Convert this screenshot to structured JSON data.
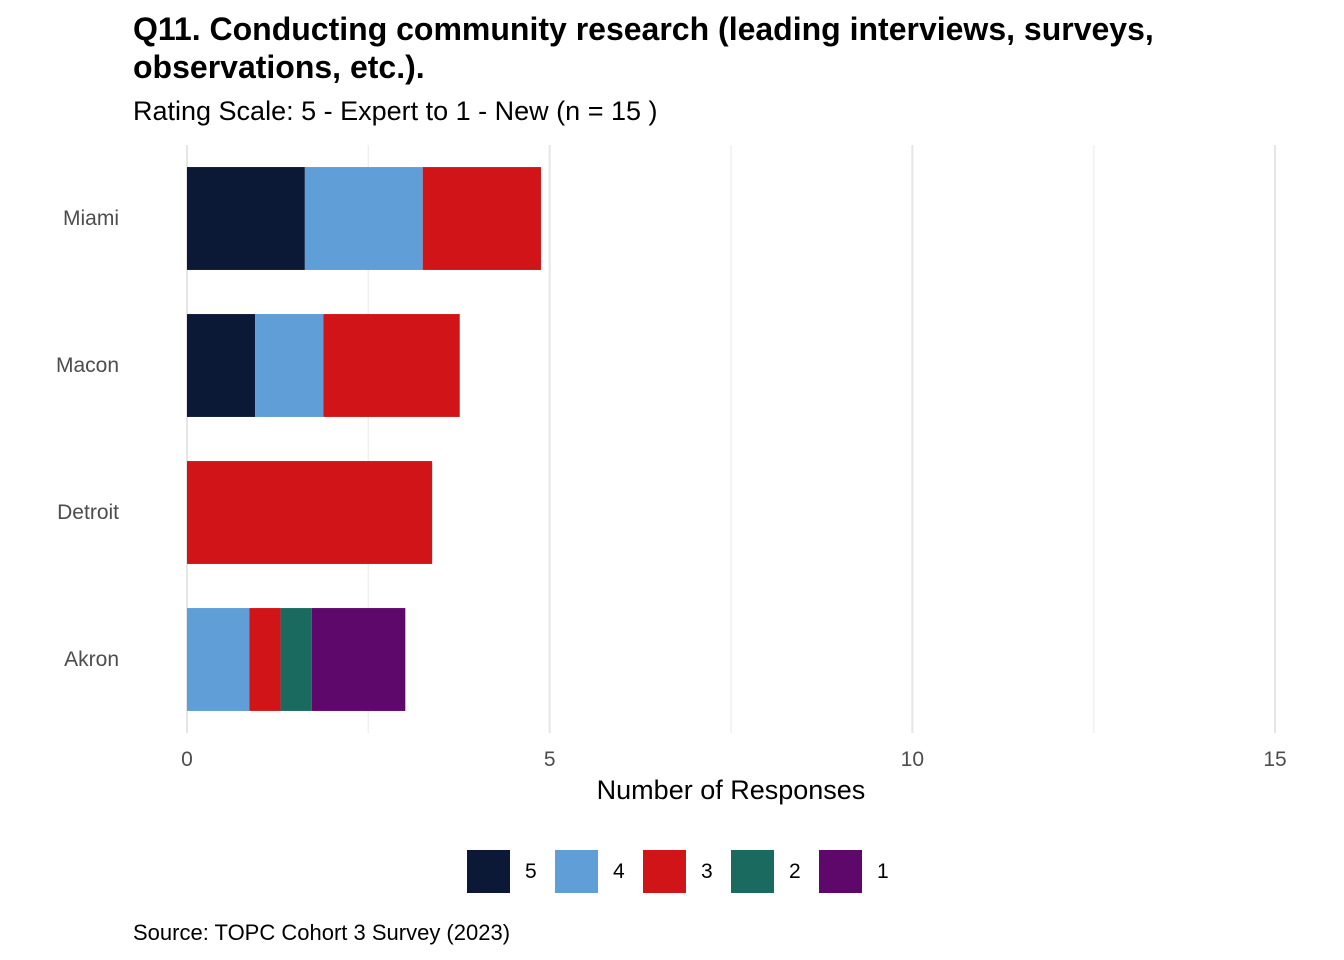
{
  "title": "Q11. Conducting community research (leading interviews, surveys, observations, etc.).",
  "subtitle": "Rating Scale: 5 - Expert to 1 - New (n = 15 )",
  "caption": "Source: TOPC Cohort 3 Survey (2023)",
  "chart_data": {
    "type": "bar",
    "orientation": "horizontal",
    "stacked": true,
    "xlabel": "Number of Responses",
    "ylabel": "",
    "xlim": [
      0,
      15
    ],
    "x_ticks": [
      0,
      5,
      10,
      15
    ],
    "grid": "vertical",
    "legend_position": "bottom",
    "categories": [
      "Miami",
      "Macon",
      "Detroit",
      "Akron"
    ],
    "series": [
      {
        "name": "5",
        "color": "#0B1836",
        "values": [
          1.625,
          0.94,
          0,
          0
        ]
      },
      {
        "name": "4",
        "color": "#5F9ED6",
        "values": [
          1.625,
          0.94,
          0,
          0.86
        ]
      },
      {
        "name": "3",
        "color": "#D11418",
        "values": [
          1.63,
          1.88,
          3.38,
          0.43
        ]
      },
      {
        "name": "2",
        "color": "#1A6A5F",
        "values": [
          0,
          0,
          0,
          0.43
        ]
      },
      {
        "name": "1",
        "color": "#5E086C",
        "values": [
          0,
          0,
          0,
          1.29
        ]
      }
    ]
  }
}
